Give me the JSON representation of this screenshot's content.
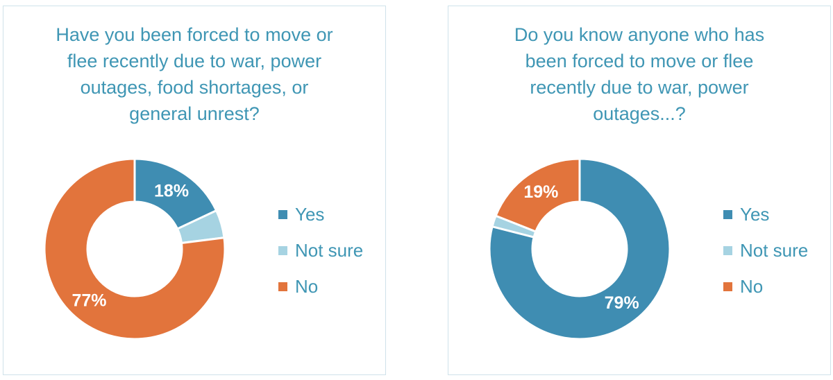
{
  "page": {
    "background": "#ffffff"
  },
  "card": {
    "background": "#ffffff",
    "border_color": "#cfe2ea"
  },
  "text_color": "#3f96b4",
  "chart_data": [
    {
      "type": "pie",
      "subtype": "donut",
      "title": "Have you been forced to move or flee recently due to war, power outages, food shortages, or general unrest?",
      "title_lines": [
        "Have you been forced to move or",
        "flee recently due to war, power",
        "outages, food shortages, or",
        "general unrest?"
      ],
      "categories": [
        "Yes",
        "Not sure",
        "No"
      ],
      "values": [
        18,
        5,
        77
      ],
      "data_labels": [
        "18%",
        "",
        "77%"
      ],
      "colors": [
        "#3f8db2",
        "#a6d3e2",
        "#e2743c"
      ],
      "label_color": "#ffffff",
      "legend_position": "right",
      "start_angle_deg": 0,
      "direction": "clockwise",
      "donut_hole_ratio": 0.52
    },
    {
      "type": "pie",
      "subtype": "donut",
      "title": "Do you know anyone who has been forced to move or flee recently due to war, power outages...?",
      "title_lines": [
        "Do you know anyone who has",
        "been forced to move or flee",
        "recently due to war, power",
        "outages...?"
      ],
      "categories": [
        "Yes",
        "Not sure",
        "No"
      ],
      "values": [
        79,
        2,
        19
      ],
      "data_labels": [
        "79%",
        "",
        "19%"
      ],
      "colors": [
        "#3f8db2",
        "#a6d3e2",
        "#e2743c"
      ],
      "label_color": "#ffffff",
      "legend_position": "right",
      "start_angle_deg": 0,
      "direction": "clockwise",
      "donut_hole_ratio": 0.52
    }
  ]
}
